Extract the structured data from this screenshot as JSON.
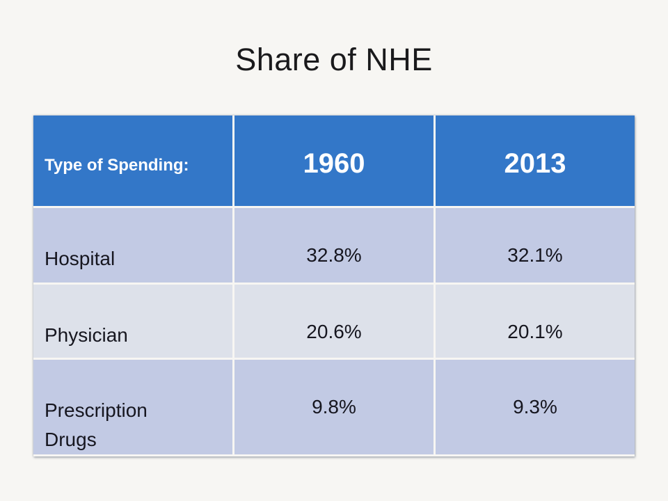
{
  "title": "Share of NHE",
  "chart_data": {
    "type": "table",
    "title": "Share of NHE",
    "columns": [
      "Type of Spending:",
      "1960",
      "2013"
    ],
    "rows": [
      [
        "Hospital",
        "32.8%",
        "32.1%"
      ],
      [
        "Physician",
        "20.6%",
        "20.1%"
      ],
      [
        "Prescription Drugs",
        "9.8%",
        "9.3%"
      ]
    ]
  },
  "colors": {
    "background": "#f7f6f3",
    "header_bg": "#3377c8",
    "header_text": "#ffffff",
    "row_band_dark": "#c2cae4",
    "row_band_light": "#dde1ea",
    "body_text": "#16161f",
    "gridline": "#f7f6f3"
  }
}
